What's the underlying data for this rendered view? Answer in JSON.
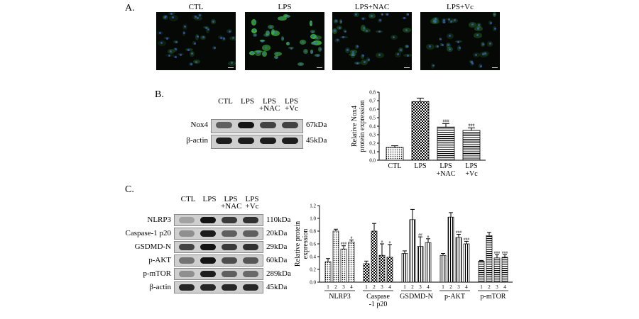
{
  "panels": {
    "a": "A.",
    "b": "B.",
    "c": "C."
  },
  "panel_a": {
    "titles": [
      "CTL",
      "LPS",
      "LPS+NAC",
      "LPS+Vc"
    ]
  },
  "panel_b": {
    "lanes": [
      [
        "CTL"
      ],
      [
        "LPS"
      ],
      [
        "LPS",
        "+NAC"
      ],
      [
        "LPS",
        "+Vc"
      ]
    ],
    "rows": [
      {
        "label": "Nox4",
        "size": "67kDa",
        "bands": [
          0.55,
          0.95,
          0.7,
          0.7
        ]
      },
      {
        "label": "β-actin",
        "size": "45kDa",
        "bands": [
          0.9,
          0.9,
          0.9,
          0.9
        ]
      }
    ]
  },
  "panel_c": {
    "lanes": [
      [
        "CTL"
      ],
      [
        "LPS"
      ],
      [
        "LPS",
        "+NAC"
      ],
      [
        "LPS",
        "+Vc"
      ]
    ],
    "rows": [
      {
        "label": "NLRP3",
        "size": "110kDa",
        "bands": [
          0.2,
          0.95,
          0.75,
          0.8
        ]
      },
      {
        "label": "Caspase-1 p20",
        "size": "20kDa",
        "bands": [
          0.3,
          0.9,
          0.55,
          0.55
        ]
      },
      {
        "label": "GSDMD-N",
        "size": "29kDa",
        "bands": [
          0.7,
          0.95,
          0.75,
          0.8
        ]
      },
      {
        "label": "p-AKT",
        "size": "60kDa",
        "bands": [
          0.45,
          0.95,
          0.65,
          0.6
        ]
      },
      {
        "label": "p-mTOR",
        "size": "289kDa",
        "bands": [
          0.3,
          0.9,
          0.55,
          0.5
        ]
      },
      {
        "label": "β-actin",
        "size": "45kDa",
        "bands": [
          0.85,
          0.85,
          0.85,
          0.85
        ]
      }
    ]
  },
  "colors": {
    "fluor_green": "#3fbf3f",
    "fluor_blue": "#3f5fcf",
    "bar_edge": "#000000"
  },
  "chart_data": [
    {
      "type": "bar",
      "categories": [
        [
          "CTL"
        ],
        [
          "LPS"
        ],
        [
          "LPS",
          "+NAC"
        ],
        [
          "LPS",
          "+Vc"
        ]
      ],
      "values": [
        0.15,
        0.69,
        0.39,
        0.35
      ],
      "errors": [
        0.02,
        0.04,
        0.04,
        0.03
      ],
      "significance": [
        "",
        "",
        "###",
        "###"
      ],
      "ylabel": [
        "Relative Nox4",
        "protein expression"
      ],
      "ylim": [
        0,
        0.8
      ],
      "yticks": [
        "0.0",
        "0.1",
        "0.2",
        "0.3",
        "0.4",
        "0.5",
        "0.6",
        "0.7",
        "0.8"
      ],
      "patterns": [
        "dots",
        "checks",
        "hlines",
        "hlines2"
      ]
    },
    {
      "type": "bar",
      "groups": [
        "NLRP3",
        [
          "Caspase",
          "-1 p20"
        ],
        "GSDMD-N",
        "p-AKT",
        "p-mTOR"
      ],
      "subcategories": [
        "1",
        "2",
        "3",
        "4"
      ],
      "series": [
        {
          "values": [
            0.32,
            0.8,
            0.52,
            0.63
          ],
          "errors": [
            0.05,
            0.03,
            0.05,
            0.03
          ],
          "significance": [
            "",
            "",
            "###",
            "#"
          ]
        },
        {
          "values": [
            0.29,
            0.8,
            0.42,
            0.39
          ],
          "errors": [
            0.04,
            0.12,
            0.18,
            0.2
          ],
          "significance": [
            "",
            "",
            "#",
            "#"
          ]
        },
        {
          "values": [
            0.45,
            0.98,
            0.56,
            0.62
          ],
          "errors": [
            0.04,
            0.16,
            0.15,
            0.06
          ],
          "significance": [
            "",
            "",
            "##",
            "#"
          ]
        },
        {
          "values": [
            0.42,
            1.02,
            0.7,
            0.6
          ],
          "errors": [
            0.03,
            0.07,
            0.05,
            0.04
          ],
          "significance": [
            "",
            "",
            "###",
            "###"
          ]
        },
        {
          "values": [
            0.33,
            0.73,
            0.38,
            0.39
          ],
          "errors": [
            0.01,
            0.05,
            0.05,
            0.04
          ],
          "significance": [
            "",
            "",
            "###",
            "###"
          ]
        }
      ],
      "ylabel": [
        "Relative protein",
        "expression"
      ],
      "ylim": [
        0,
        1.2
      ],
      "yticks": [
        "0.0",
        "0.2",
        "0.4",
        "0.6",
        "0.8",
        "1.0",
        "1.2"
      ],
      "patterns": [
        "dots",
        "checks",
        "vlines",
        "vlines",
        "hlines"
      ]
    }
  ]
}
